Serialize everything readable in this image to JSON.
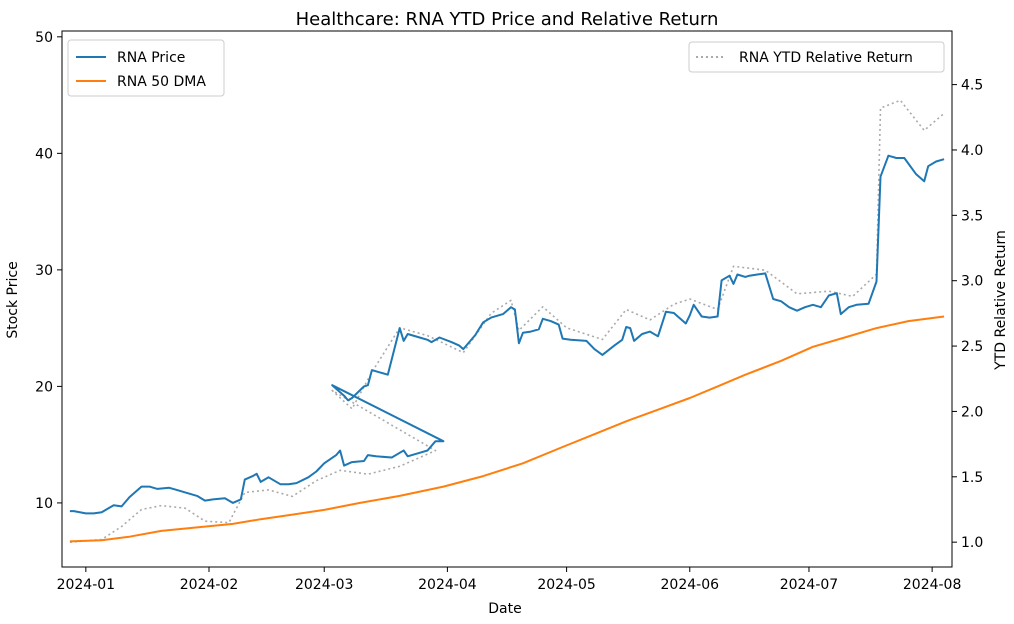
{
  "chart_data": {
    "type": "line",
    "title": "Healthcare: RNA YTD Price and Relative Return",
    "xlabel": "Date",
    "ylabel_left": "Stock Price",
    "ylabel_right": "YTD Relative Return",
    "x_range": [
      "2023-12-26",
      "2024-08-06"
    ],
    "x_ticks": [
      "2024-01",
      "2024-02",
      "2024-03",
      "2024-04",
      "2024-05",
      "2024-06",
      "2024-07",
      "2024-08"
    ],
    "x_tick_dates": [
      "2024-01-01",
      "2024-02-01",
      "2024-03-01",
      "2024-04-01",
      "2024-05-01",
      "2024-06-01",
      "2024-07-01",
      "2024-08-01"
    ],
    "ylim_left": [
      4.5,
      50.5
    ],
    "yticks_left": [
      "10",
      "20",
      "30",
      "40",
      "50"
    ],
    "ylim_right": [
      0.81,
      4.91
    ],
    "yticks_right": [
      "1.0",
      "1.5",
      "2.0",
      "2.5",
      "3.0",
      "3.5",
      "4.0",
      "4.5"
    ],
    "grid": false,
    "legend_left": {
      "placement": "top-left",
      "entries": [
        "RNA Price",
        "RNA 50 DMA"
      ]
    },
    "legend_right": {
      "placement": "top-right",
      "entries": [
        "RNA YTD Relative Return"
      ]
    },
    "series": [
      {
        "name": "RNA Price",
        "axis": "left",
        "color": "#1f77b4",
        "style": "solid",
        "points": [
          [
            "2023-12-28",
            9.3
          ],
          [
            "2023-12-29",
            9.3
          ],
          [
            "2024-01-01",
            9.1
          ],
          [
            "2024-01-03",
            9.1
          ],
          [
            "2024-01-05",
            9.2
          ],
          [
            "2024-01-08",
            9.8
          ],
          [
            "2024-01-10",
            9.7
          ],
          [
            "2024-01-12",
            10.5
          ],
          [
            "2024-01-15",
            11.4
          ],
          [
            "2024-01-17",
            11.4
          ],
          [
            "2024-01-19",
            11.2
          ],
          [
            "2024-01-22",
            11.3
          ],
          [
            "2024-01-24",
            11.1
          ],
          [
            "2024-01-26",
            10.9
          ],
          [
            "2024-01-29",
            10.6
          ],
          [
            "2024-01-31",
            10.2
          ],
          [
            "2024-02-02",
            10.3
          ],
          [
            "2024-02-05",
            10.4
          ],
          [
            "2024-02-07",
            10.0
          ],
          [
            "2024-02-09",
            10.3
          ],
          [
            "2024-02-10",
            12.0
          ],
          [
            "2024-02-12",
            12.3
          ],
          [
            "2024-02-13",
            12.5
          ],
          [
            "2024-02-14",
            11.8
          ],
          [
            "2024-02-16",
            12.2
          ],
          [
            "2024-02-19",
            11.6
          ],
          [
            "2024-02-21",
            11.6
          ],
          [
            "2024-02-23",
            11.7
          ],
          [
            "2024-02-26",
            12.2
          ],
          [
            "2024-02-28",
            12.7
          ],
          [
            "2024-03-01",
            13.4
          ],
          [
            "2024-03-04",
            14.1
          ],
          [
            "2024-03-05",
            14.5
          ],
          [
            "2024-03-06",
            13.2
          ],
          [
            "2024-03-08",
            13.5
          ],
          [
            "2024-03-11",
            13.6
          ],
          [
            "2024-03-12",
            14.1
          ],
          [
            "2024-03-14",
            14.0
          ],
          [
            "2024-03-18",
            13.9
          ],
          [
            "2024-03-20",
            14.3
          ],
          [
            "2024-03-21",
            14.5
          ],
          [
            "2024-03-22",
            14.0
          ],
          [
            "2024-03-25",
            14.3
          ],
          [
            "2024-03-27",
            14.5
          ],
          [
            "2024-03-29",
            15.3
          ],
          [
            "2024-03-31",
            15.3
          ],
          [
            "2024-03-03",
            20.1
          ],
          [
            "2024-03-06",
            19.2
          ],
          [
            "2024-03-07",
            18.8
          ],
          [
            "2024-03-08",
            19.0
          ],
          [
            "2024-03-11",
            20.0
          ],
          [
            "2024-03-12",
            20.1
          ],
          [
            "2024-03-13",
            21.4
          ],
          [
            "2024-03-15",
            21.2
          ],
          [
            "2024-03-17",
            21.0
          ],
          [
            "2024-03-20",
            25.0
          ],
          [
            "2024-03-21",
            23.9
          ],
          [
            "2024-03-22",
            24.5
          ],
          [
            "2024-03-25",
            24.2
          ],
          [
            "2024-03-27",
            24.0
          ],
          [
            "2024-03-28",
            23.8
          ],
          [
            "2024-03-30",
            24.2
          ],
          [
            "2024-04-02",
            23.8
          ],
          [
            "2024-04-04",
            23.5
          ],
          [
            "2024-04-05",
            23.2
          ],
          [
            "2024-04-08",
            24.4
          ],
          [
            "2024-04-10",
            25.5
          ],
          [
            "2024-04-12",
            25.9
          ],
          [
            "2024-04-15",
            26.2
          ],
          [
            "2024-04-17",
            26.8
          ],
          [
            "2024-04-18",
            26.6
          ],
          [
            "2024-04-19",
            23.7
          ],
          [
            "2024-04-20",
            24.6
          ],
          [
            "2024-04-22",
            24.7
          ],
          [
            "2024-04-24",
            24.9
          ],
          [
            "2024-04-25",
            25.8
          ],
          [
            "2024-04-27",
            25.6
          ],
          [
            "2024-04-29",
            25.3
          ],
          [
            "2024-04-30",
            24.1
          ],
          [
            "2024-05-02",
            24.0
          ],
          [
            "2024-05-06",
            23.9
          ],
          [
            "2024-05-08",
            23.2
          ],
          [
            "2024-05-10",
            22.7
          ],
          [
            "2024-05-13",
            23.5
          ],
          [
            "2024-05-15",
            24.0
          ],
          [
            "2024-05-16",
            25.1
          ],
          [
            "2024-05-17",
            25.0
          ],
          [
            "2024-05-18",
            23.9
          ],
          [
            "2024-05-20",
            24.5
          ],
          [
            "2024-05-22",
            24.7
          ],
          [
            "2024-05-24",
            24.3
          ],
          [
            "2024-05-26",
            26.4
          ],
          [
            "2024-05-28",
            26.3
          ],
          [
            "2024-05-29",
            26.0
          ],
          [
            "2024-05-31",
            25.4
          ],
          [
            "2024-06-01",
            26.1
          ],
          [
            "2024-06-02",
            27.0
          ],
          [
            "2024-06-04",
            26.0
          ],
          [
            "2024-06-06",
            25.9
          ],
          [
            "2024-06-08",
            26.0
          ],
          [
            "2024-06-09",
            29.1
          ],
          [
            "2024-06-11",
            29.5
          ],
          [
            "2024-06-12",
            28.8
          ],
          [
            "2024-06-13",
            29.6
          ],
          [
            "2024-06-15",
            29.4
          ],
          [
            "2024-06-16",
            29.5
          ],
          [
            "2024-06-18",
            29.6
          ],
          [
            "2024-06-20",
            29.7
          ],
          [
            "2024-06-22",
            27.5
          ],
          [
            "2024-06-24",
            27.3
          ],
          [
            "2024-06-26",
            26.8
          ],
          [
            "2024-06-28",
            26.5
          ],
          [
            "2024-06-30",
            26.8
          ],
          [
            "2024-07-02",
            27.0
          ],
          [
            "2024-07-04",
            26.8
          ],
          [
            "2024-07-06",
            27.8
          ],
          [
            "2024-07-08",
            28.0
          ],
          [
            "2024-07-09",
            26.2
          ],
          [
            "2024-07-11",
            26.8
          ],
          [
            "2024-07-13",
            27.0
          ],
          [
            "2024-07-16",
            27.1
          ],
          [
            "2024-07-18",
            29.0
          ],
          [
            "2024-07-19",
            38.0
          ],
          [
            "2024-07-21",
            39.8
          ],
          [
            "2024-07-23",
            39.6
          ],
          [
            "2024-07-25",
            39.6
          ],
          [
            "2024-07-28",
            38.2
          ],
          [
            "2024-07-30",
            37.6
          ],
          [
            "2024-07-31",
            38.9
          ],
          [
            "2024-08-02",
            39.3
          ],
          [
            "2024-08-04",
            39.5
          ]
        ]
      },
      {
        "name": "RNA 50 DMA",
        "axis": "left",
        "color": "#ff7f0e",
        "style": "solid",
        "points": [
          [
            "2023-12-28",
            6.7
          ],
          [
            "2024-01-05",
            6.8
          ],
          [
            "2024-01-12",
            7.1
          ],
          [
            "2024-01-20",
            7.6
          ],
          [
            "2024-01-29",
            7.9
          ],
          [
            "2024-02-07",
            8.2
          ],
          [
            "2024-02-14",
            8.6
          ],
          [
            "2024-02-22",
            9.0
          ],
          [
            "2024-03-01",
            9.4
          ],
          [
            "2024-03-10",
            10.0
          ],
          [
            "2024-03-20",
            10.6
          ],
          [
            "2024-03-31",
            11.4
          ],
          [
            "2024-04-10",
            12.3
          ],
          [
            "2024-04-20",
            13.4
          ],
          [
            "2024-04-30",
            14.8
          ],
          [
            "2024-05-08",
            15.9
          ],
          [
            "2024-05-16",
            17.0
          ],
          [
            "2024-05-24",
            18.0
          ],
          [
            "2024-06-01",
            19.0
          ],
          [
            "2024-06-08",
            20.0
          ],
          [
            "2024-06-15",
            21.0
          ],
          [
            "2024-06-24",
            22.2
          ],
          [
            "2024-07-02",
            23.4
          ],
          [
            "2024-07-10",
            24.2
          ],
          [
            "2024-07-18",
            25.0
          ],
          [
            "2024-07-26",
            25.6
          ],
          [
            "2024-08-04",
            26.0
          ]
        ]
      },
      {
        "name": "RNA YTD Relative Return",
        "axis": "right",
        "color": "#aaaaaa",
        "style": "dotted",
        "points": [
          [
            "2023-12-28",
            1.0
          ],
          [
            "2024-01-05",
            1.02
          ],
          [
            "2024-01-10",
            1.12
          ],
          [
            "2024-01-15",
            1.25
          ],
          [
            "2024-01-20",
            1.28
          ],
          [
            "2024-01-26",
            1.26
          ],
          [
            "2024-01-31",
            1.16
          ],
          [
            "2024-02-06",
            1.15
          ],
          [
            "2024-02-10",
            1.38
          ],
          [
            "2024-02-16",
            1.4
          ],
          [
            "2024-02-22",
            1.35
          ],
          [
            "2024-02-28",
            1.47
          ],
          [
            "2024-03-05",
            1.55
          ],
          [
            "2024-03-12",
            1.52
          ],
          [
            "2024-03-20",
            1.58
          ],
          [
            "2024-03-29",
            1.7
          ],
          [
            "2024-03-03",
            2.16
          ],
          [
            "2024-03-08",
            2.02
          ],
          [
            "2024-03-13",
            2.3
          ],
          [
            "2024-03-20",
            2.64
          ],
          [
            "2024-03-27",
            2.58
          ],
          [
            "2024-04-05",
            2.45
          ],
          [
            "2024-04-12",
            2.75
          ],
          [
            "2024-04-17",
            2.85
          ],
          [
            "2024-04-19",
            2.62
          ],
          [
            "2024-04-25",
            2.8
          ],
          [
            "2024-05-01",
            2.64
          ],
          [
            "2024-05-10",
            2.55
          ],
          [
            "2024-05-16",
            2.78
          ],
          [
            "2024-05-22",
            2.7
          ],
          [
            "2024-05-28",
            2.82
          ],
          [
            "2024-06-01",
            2.86
          ],
          [
            "2024-06-08",
            2.78
          ],
          [
            "2024-06-12",
            3.11
          ],
          [
            "2024-06-20",
            3.08
          ],
          [
            "2024-06-28",
            2.9
          ],
          [
            "2024-07-06",
            2.92
          ],
          [
            "2024-07-12",
            2.88
          ],
          [
            "2024-07-18",
            3.05
          ],
          [
            "2024-07-19",
            4.32
          ],
          [
            "2024-07-24",
            4.38
          ],
          [
            "2024-07-30",
            4.15
          ],
          [
            "2024-08-04",
            4.28
          ]
        ]
      }
    ]
  }
}
